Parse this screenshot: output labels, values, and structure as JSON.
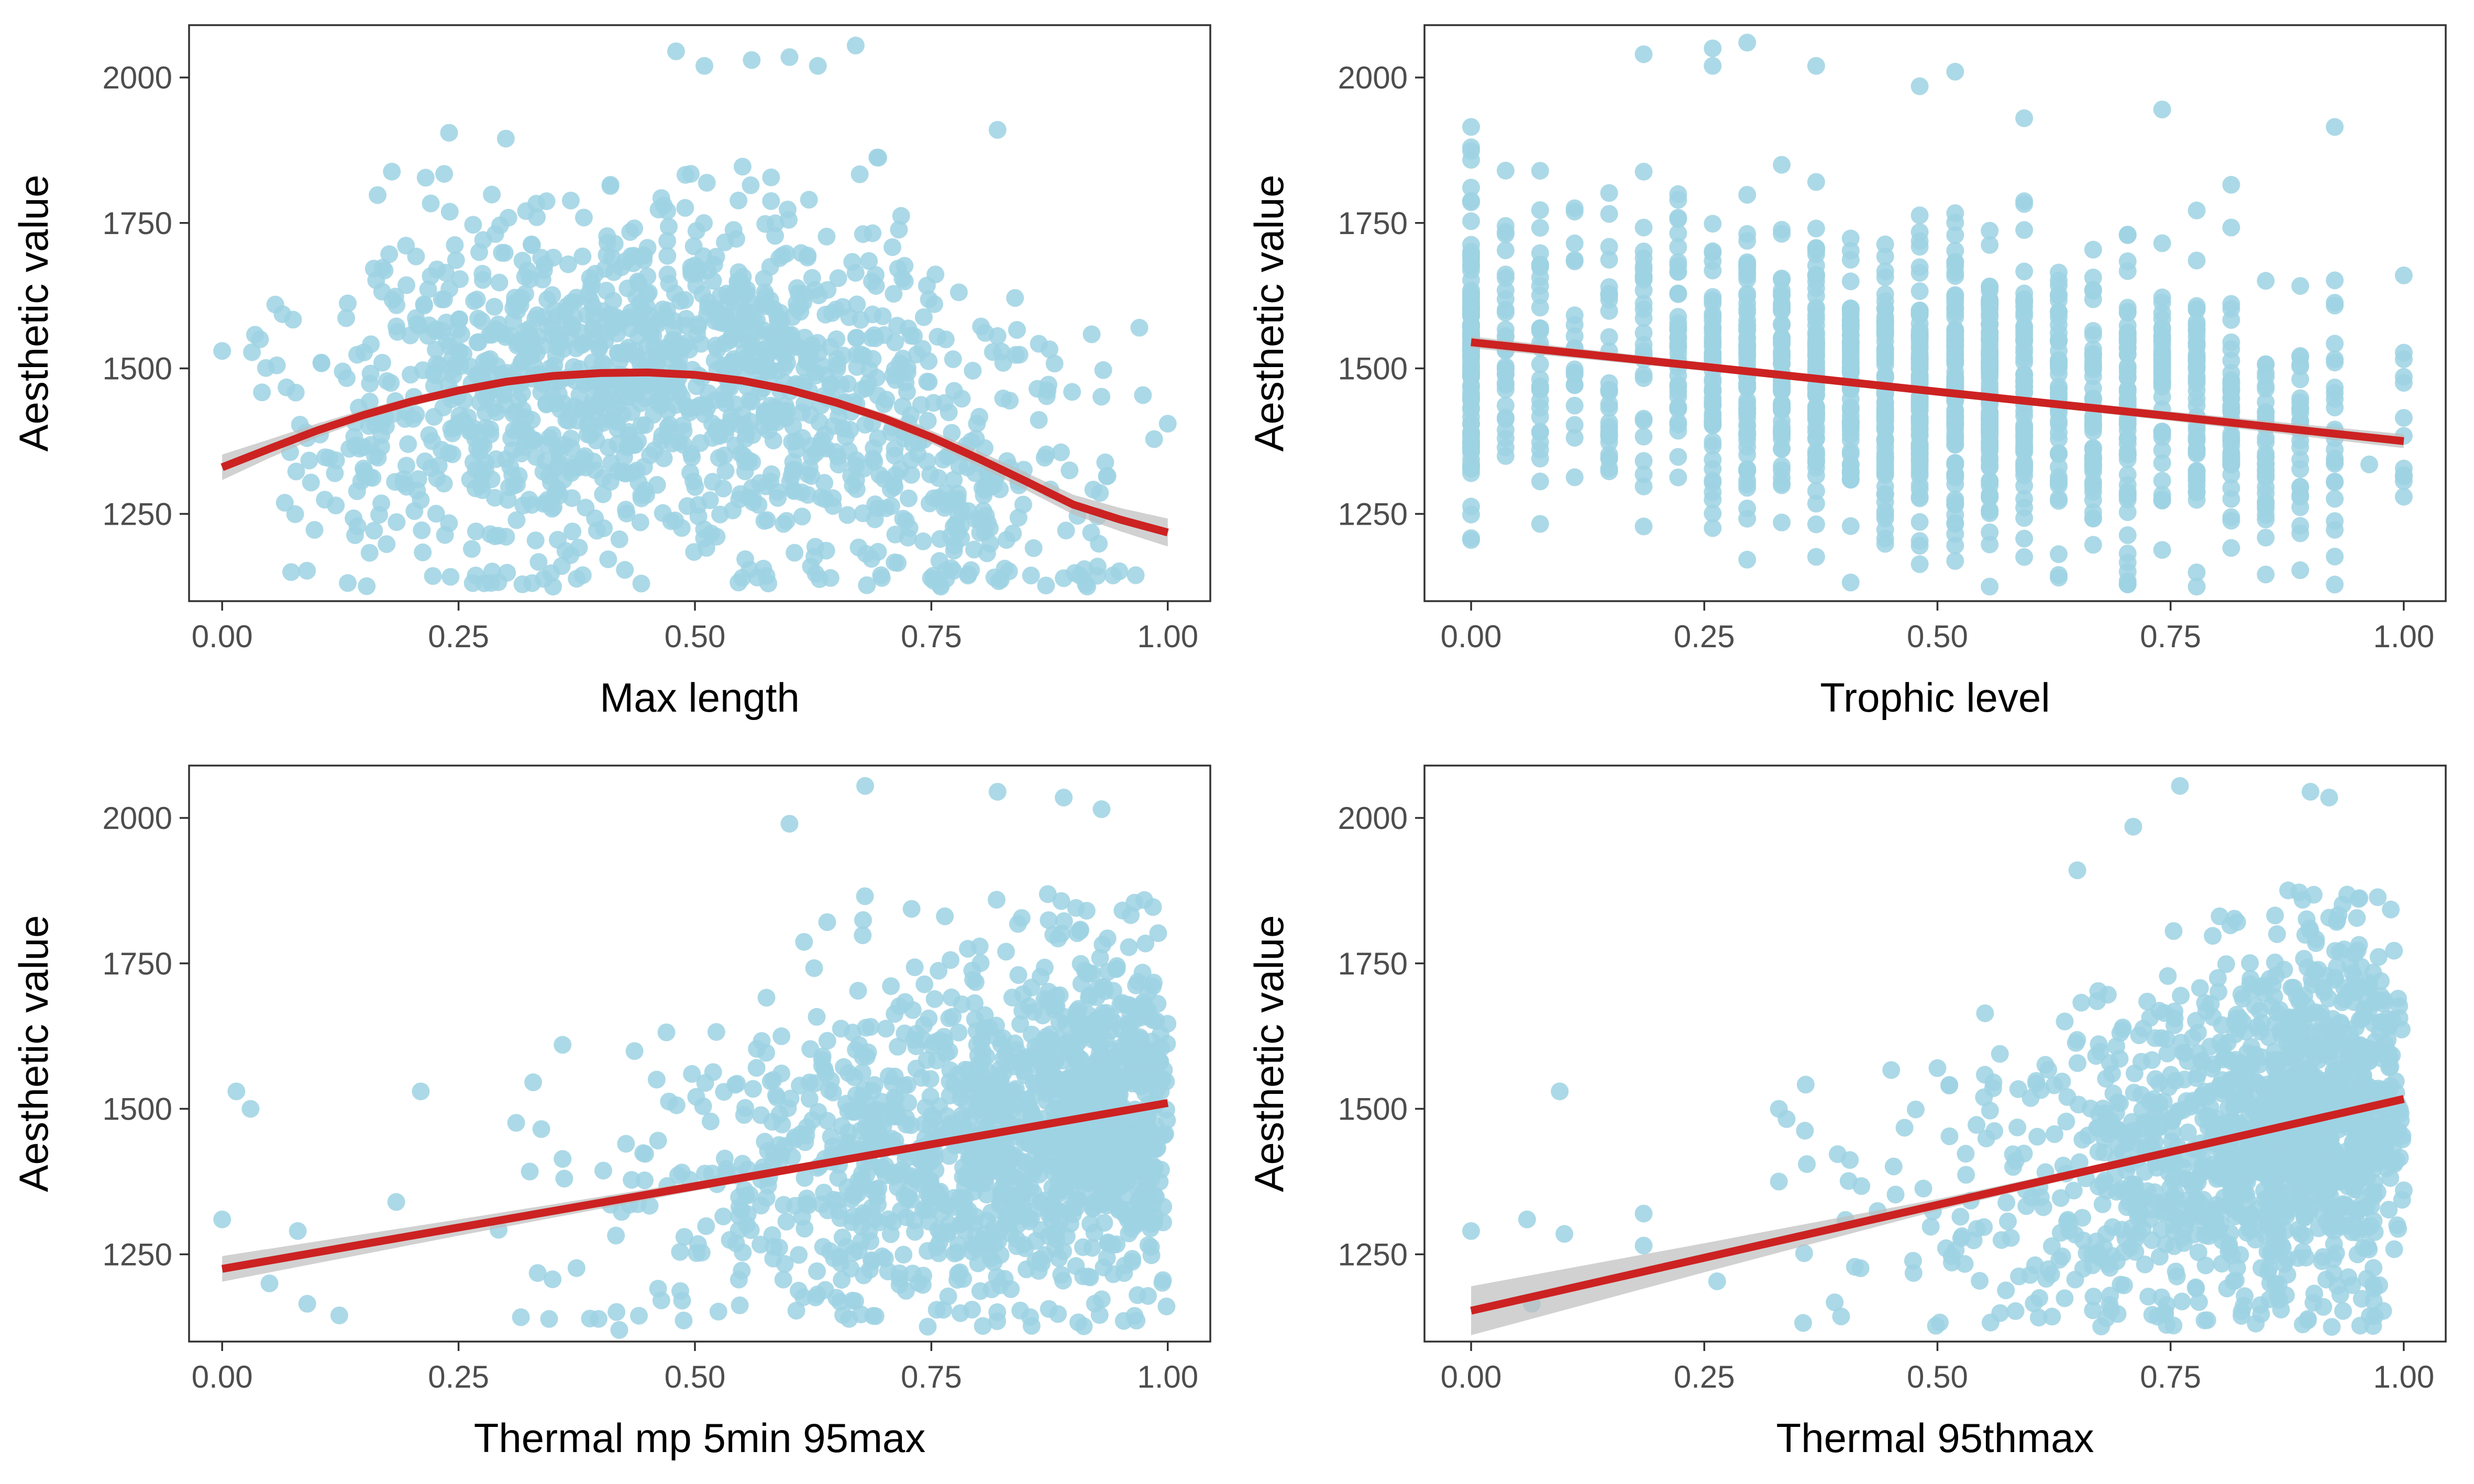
{
  "colors": {
    "points": "#9ed2e3",
    "fit_line": "#cc2222",
    "ci_band": "#bdbdbd",
    "frame": "#333333",
    "tick_text": "#4d4d4d"
  },
  "chart_data": [
    {
      "type": "scatter",
      "xlabel": "Max length",
      "ylabel": "Aesthetic value",
      "xlim": [
        -0.035,
        1.045
      ],
      "ylim": [
        1100,
        2090
      ],
      "xticks": [
        0.0,
        0.25,
        0.5,
        0.75,
        1.0
      ],
      "xtick_labels": [
        "0.00",
        "0.25",
        "0.50",
        "0.75",
        "1.00"
      ],
      "yticks": [
        1250,
        1500,
        1750,
        2000
      ],
      "ytick_labels": [
        "1250",
        "1500",
        "1750",
        "2000"
      ],
      "grid": false,
      "fit": {
        "kind": "quadratic",
        "x": [
          0.0,
          0.05,
          0.1,
          0.15,
          0.2,
          0.25,
          0.3,
          0.35,
          0.4,
          0.45,
          0.5,
          0.55,
          0.6,
          0.65,
          0.7,
          0.75,
          0.8,
          0.85,
          0.9,
          0.95,
          1.0
        ],
        "y": [
          1330,
          1362,
          1393,
          1420,
          1443,
          1462,
          1477,
          1487,
          1492,
          1493,
          1489,
          1479,
          1463,
          1441,
          1414,
          1382,
          1345,
          1306,
          1266,
          1240,
          1218
        ],
        "ci_halfwidth": [
          22,
          16,
          12,
          9,
          8,
          7,
          7,
          7,
          7,
          7,
          7,
          7,
          7,
          8,
          9,
          11,
          13,
          15,
          17,
          20,
          24
        ]
      },
      "scatter_spec": {
        "n": 1400,
        "x_mode": "beta_mid",
        "x_alpha": 2.6,
        "x_beta": 2.6,
        "y_sd": 150,
        "seed": 11
      },
      "highlight_points": [
        {
          "x": 0.0,
          "y": 1530
        },
        {
          "x": 0.04,
          "y": 1550
        },
        {
          "x": 0.24,
          "y": 1905
        },
        {
          "x": 0.3,
          "y": 1895
        },
        {
          "x": 0.48,
          "y": 2045
        },
        {
          "x": 0.51,
          "y": 2020
        },
        {
          "x": 0.56,
          "y": 2030
        },
        {
          "x": 0.6,
          "y": 2035
        },
        {
          "x": 0.63,
          "y": 2020
        },
        {
          "x": 0.67,
          "y": 2055
        },
        {
          "x": 0.82,
          "y": 1910
        },
        {
          "x": 0.97,
          "y": 1570
        },
        {
          "x": 1.0,
          "y": 1405
        },
        {
          "x": 0.35,
          "y": 1125
        },
        {
          "x": 0.76,
          "y": 1125
        },
        {
          "x": 0.55,
          "y": 1140
        }
      ]
    },
    {
      "type": "scatter",
      "xlabel": "Trophic level",
      "ylabel": "Aesthetic value",
      "xlim": [
        -0.05,
        1.045
      ],
      "ylim": [
        1100,
        2090
      ],
      "xticks": [
        0.0,
        0.25,
        0.5,
        0.75,
        1.0
      ],
      "xtick_labels": [
        "0.00",
        "0.25",
        "0.50",
        "0.75",
        "1.00"
      ],
      "yticks": [
        1250,
        1500,
        1750,
        2000
      ],
      "ytick_labels": [
        "1250",
        "1500",
        "1750",
        "2000"
      ],
      "grid": false,
      "fit": {
        "kind": "linear",
        "x": [
          0.0,
          0.25,
          0.5,
          0.75,
          1.0
        ],
        "y": [
          1545,
          1503,
          1460,
          1418,
          1375
        ],
        "ci_halfwidth": [
          10,
          7,
          6,
          8,
          12
        ]
      },
      "scatter_spec": {
        "n": 1400,
        "x_mode": "discrete",
        "x_levels": [
          0.0,
          0.037,
          0.074,
          0.111,
          0.148,
          0.185,
          0.222,
          0.259,
          0.296,
          0.333,
          0.37,
          0.407,
          0.444,
          0.481,
          0.519,
          0.556,
          0.593,
          0.63,
          0.667,
          0.704,
          0.741,
          0.778,
          0.815,
          0.852,
          0.889,
          0.926,
          1.0
        ],
        "x_weights": [
          10,
          3,
          3,
          2,
          3,
          3,
          5,
          6,
          8,
          7,
          9,
          8,
          8,
          10,
          10,
          9,
          7,
          6,
          5,
          5,
          5,
          4,
          4,
          3,
          3,
          4,
          1
        ],
        "y_sd": 120,
        "seed": 23
      },
      "highlight_points": [
        {
          "x": 0.0,
          "y": 1915
        },
        {
          "x": 0.0,
          "y": 1880
        },
        {
          "x": 0.0,
          "y": 1205
        },
        {
          "x": 0.037,
          "y": 1840
        },
        {
          "x": 0.185,
          "y": 2040
        },
        {
          "x": 0.259,
          "y": 2050
        },
        {
          "x": 0.259,
          "y": 2020
        },
        {
          "x": 0.296,
          "y": 2060
        },
        {
          "x": 0.333,
          "y": 1850
        },
        {
          "x": 0.37,
          "y": 2020
        },
        {
          "x": 0.481,
          "y": 1985
        },
        {
          "x": 0.519,
          "y": 2010
        },
        {
          "x": 0.593,
          "y": 1930
        },
        {
          "x": 0.741,
          "y": 1945
        },
        {
          "x": 0.926,
          "y": 1915
        },
        {
          "x": 1.0,
          "y": 1415
        },
        {
          "x": 0.963,
          "y": 1335
        },
        {
          "x": 0.778,
          "y": 1125
        },
        {
          "x": 0.556,
          "y": 1125
        }
      ]
    },
    {
      "type": "scatter",
      "xlabel": "Thermal mp 5min 95max",
      "ylabel": "Aesthetic value",
      "xlim": [
        -0.035,
        1.045
      ],
      "ylim": [
        1100,
        2090
      ],
      "xticks": [
        0.0,
        0.25,
        0.5,
        0.75,
        1.0
      ],
      "xtick_labels": [
        "0.00",
        "0.25",
        "0.50",
        "0.75",
        "1.00"
      ],
      "yticks": [
        1250,
        1500,
        1750,
        2000
      ],
      "ytick_labels": [
        "1250",
        "1500",
        "1750",
        "2000"
      ],
      "grid": false,
      "fit": {
        "kind": "linear",
        "x": [
          0.0,
          0.25,
          0.5,
          0.75,
          1.0
        ],
        "y": [
          1225,
          1296,
          1367,
          1439,
          1510
        ],
        "ci_halfwidth": [
          22,
          14,
          8,
          5,
          7
        ]
      },
      "scatter_spec": {
        "n": 1400,
        "x_mode": "beta_right",
        "x_alpha": 5.5,
        "x_beta": 1.3,
        "y_sd": 150,
        "seed": 37
      },
      "highlight_points": [
        {
          "x": 0.0,
          "y": 1310
        },
        {
          "x": 0.015,
          "y": 1530
        },
        {
          "x": 0.03,
          "y": 1500
        },
        {
          "x": 0.05,
          "y": 1200
        },
        {
          "x": 0.08,
          "y": 1290
        },
        {
          "x": 0.09,
          "y": 1165
        },
        {
          "x": 0.21,
          "y": 1530
        },
        {
          "x": 0.36,
          "y": 1610
        },
        {
          "x": 0.42,
          "y": 1120
        },
        {
          "x": 0.6,
          "y": 1990
        },
        {
          "x": 0.68,
          "y": 2055
        },
        {
          "x": 0.82,
          "y": 2045
        },
        {
          "x": 0.89,
          "y": 2035
        },
        {
          "x": 0.93,
          "y": 2015
        }
      ]
    },
    {
      "type": "scatter",
      "xlabel": "Thermal 95thmax",
      "ylabel": "Aesthetic value",
      "xlim": [
        -0.05,
        1.045
      ],
      "ylim": [
        1100,
        2090
      ],
      "xticks": [
        0.0,
        0.25,
        0.5,
        0.75,
        1.0
      ],
      "xtick_labels": [
        "0.00",
        "0.25",
        "0.50",
        "0.75",
        "1.00"
      ],
      "yticks": [
        1250,
        1500,
        1750,
        2000
      ],
      "ytick_labels": [
        "1250",
        "1500",
        "1750",
        "2000"
      ],
      "grid": false,
      "fit": {
        "kind": "linear",
        "x": [
          0.0,
          0.25,
          0.5,
          0.75,
          1.0
        ],
        "y": [
          1153,
          1244,
          1335,
          1426,
          1517
        ],
        "ci_halfwidth": [
          42,
          25,
          10,
          5,
          8
        ]
      },
      "scatter_spec": {
        "n": 1400,
        "x_mode": "beta_right",
        "x_alpha": 8.0,
        "x_beta": 1.6,
        "y_sd": 150,
        "seed": 53
      },
      "highlight_points": [
        {
          "x": 0.0,
          "y": 1290
        },
        {
          "x": 0.06,
          "y": 1310
        },
        {
          "x": 0.065,
          "y": 1165
        },
        {
          "x": 0.095,
          "y": 1530
        },
        {
          "x": 0.1,
          "y": 1285
        },
        {
          "x": 0.185,
          "y": 1320
        },
        {
          "x": 0.185,
          "y": 1265
        },
        {
          "x": 0.33,
          "y": 1500
        },
        {
          "x": 0.33,
          "y": 1375
        },
        {
          "x": 0.36,
          "y": 1405
        },
        {
          "x": 0.5,
          "y": 1570
        },
        {
          "x": 0.65,
          "y": 1910
        },
        {
          "x": 0.71,
          "y": 1985
        },
        {
          "x": 0.76,
          "y": 2055
        },
        {
          "x": 0.9,
          "y": 2045
        },
        {
          "x": 0.92,
          "y": 2035
        },
        {
          "x": 1.0,
          "y": 1360
        }
      ]
    }
  ]
}
